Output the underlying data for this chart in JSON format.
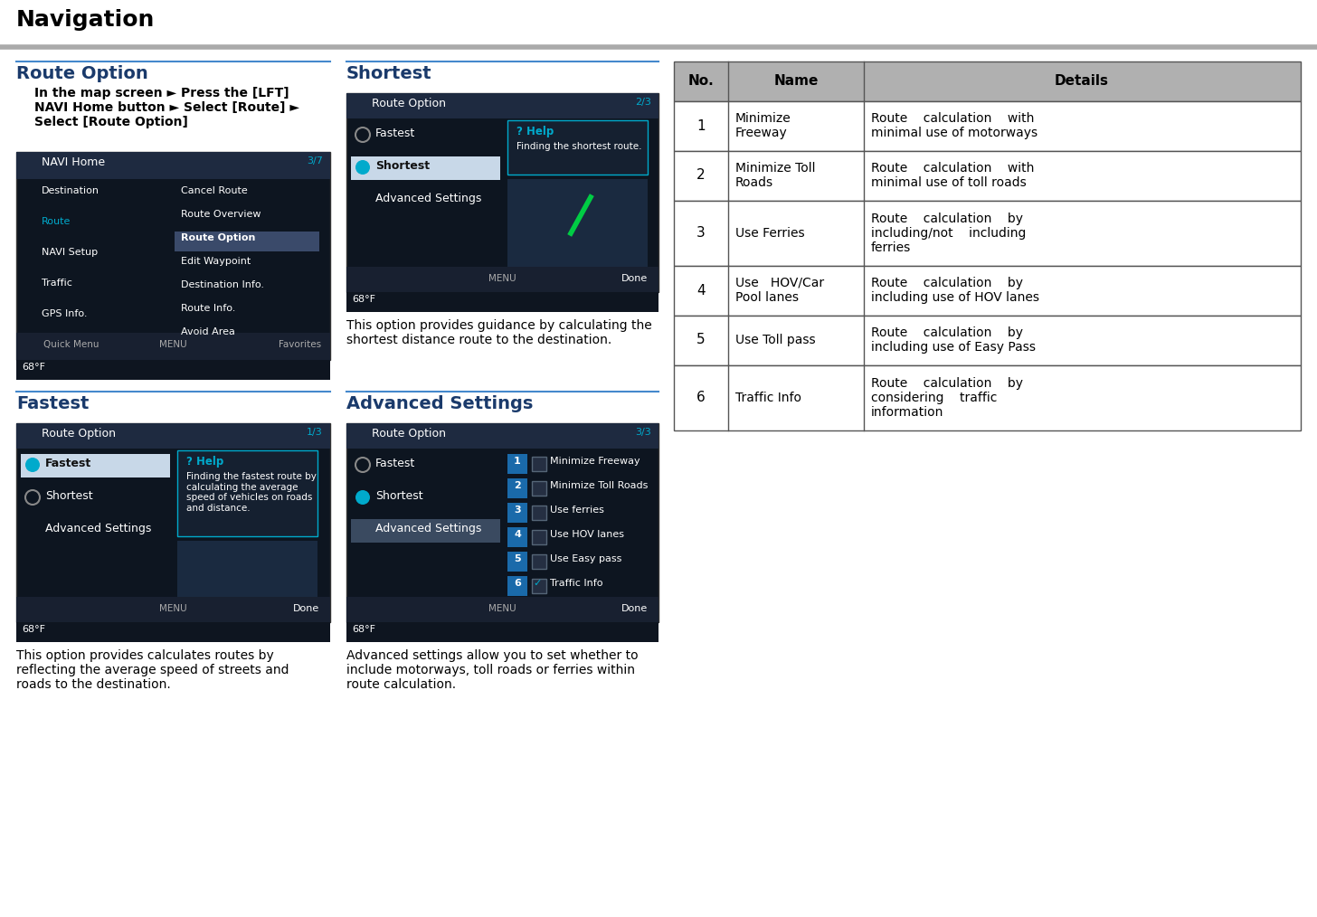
{
  "title": "Navigation",
  "bg_color": "#ffffff",
  "title_color": "#000000",
  "header_line_color": "#aaaaaa",
  "section_line_color": "#4488cc",
  "section1_title": "Route Option",
  "section2_title": "Fastest",
  "section3_title": "Shortest",
  "section4_title": "Advanced Settings",
  "section_title_color": "#1a3a6b",
  "section1_nav_text": "In the map screen ► Press the [LFT]\nNAVI Home button ► Select [Route] ►\nSelect [Route Option]",
  "section2_desc": "This option provides calculates routes by\nreflecting the average speed of streets and\nroads to the destination.",
  "section3_desc": "This option provides guidance by calculating the\nshortest distance route to the destination.",
  "section4_desc": "Advanced settings allow you to set whether to\ninclude motorways, toll roads or ferries within\nroute calculation.",
  "table_header_bg": "#b0b0b0",
  "table_row_bg": "#ffffff",
  "table_border": "#555555",
  "table_headers": [
    "No.",
    "Name",
    "Details"
  ],
  "table_rows": [
    [
      "1",
      "Minimize\nFreeway",
      "Route    calculation    with\nminimal use of motorways"
    ],
    [
      "2",
      "Minimize Toll\nRoads",
      "Route    calculation    with\nminimal use of toll roads"
    ],
    [
      "3",
      "Use Ferries",
      "Route    calculation    by\nincluding/not    including\nferries"
    ],
    [
      "4",
      "Use   HOV/Car\nPool lanes",
      "Route    calculation    by\nincluding use of HOV lanes"
    ],
    [
      "5",
      "Use Toll pass",
      "Route    calculation    by\nincluding use of Easy Pass"
    ],
    [
      "6",
      "Traffic Info",
      "Route    calculation    by\nconsidering    traffic\ninformation"
    ]
  ],
  "screen_bg": "#0d1520",
  "screen_menu_bg": "#1a2535",
  "screen_highlight_bg": "#c8d8e8",
  "screen_btn_bg": "#2a3a50",
  "screen_cyan": "#00aacc",
  "screen_text": "#ffffff",
  "screen_gray_text": "#aaaaaa",
  "adv_btn_color": "#1a6aaa"
}
